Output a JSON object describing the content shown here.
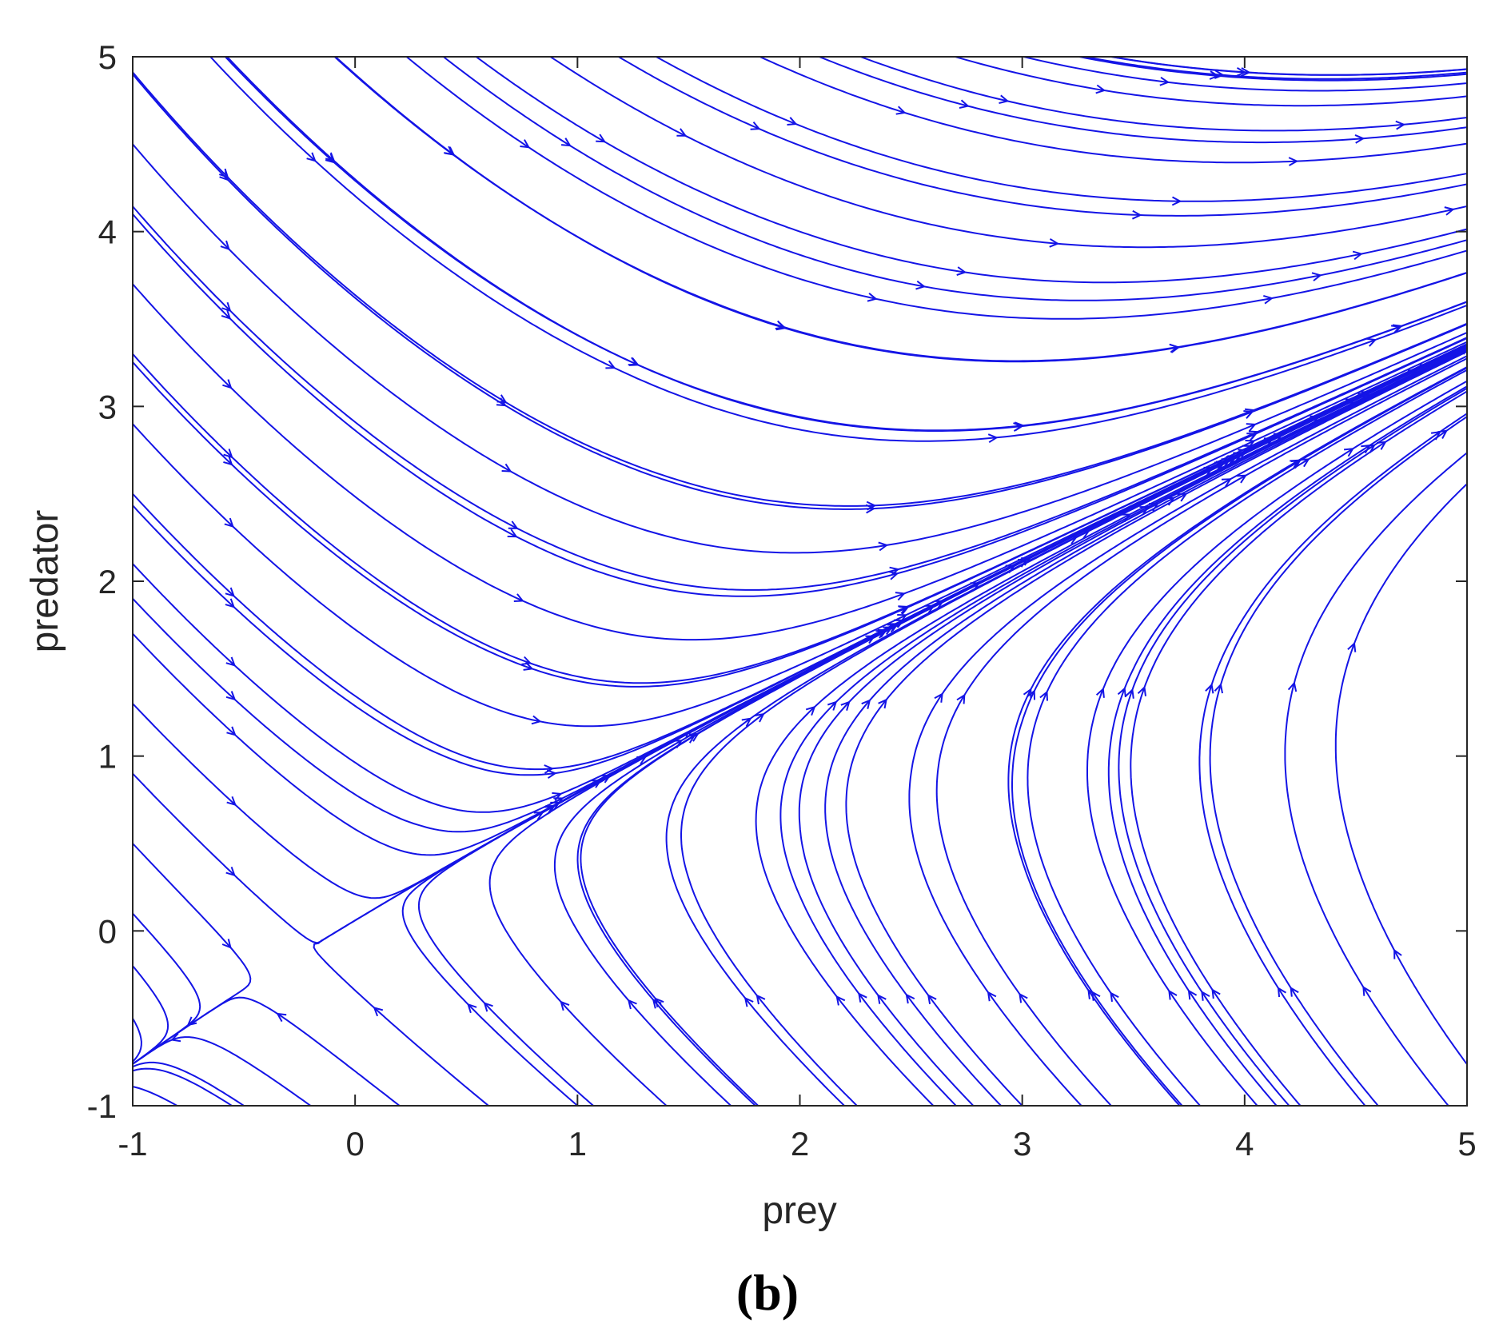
{
  "panel_label": "(b)",
  "chart_data": {
    "type": "streamplot",
    "title": "",
    "xlabel": "prey",
    "ylabel": "predator",
    "xlim": [
      -1,
      5
    ],
    "ylim": [
      -1,
      5
    ],
    "xticks": [
      -1,
      0,
      1,
      2,
      3,
      4,
      5
    ],
    "yticks": [
      -1,
      0,
      1,
      2,
      3,
      4,
      5
    ],
    "xtick_labels": [
      "-1",
      "0",
      "1",
      "2",
      "3",
      "4",
      "5"
    ],
    "ytick_labels": [
      "-1",
      "0",
      "1",
      "2",
      "3",
      "4",
      "5"
    ],
    "grid": false,
    "legend": "none",
    "line_color": "#1414e6",
    "axis_color": "#262626",
    "seeds": [
      [
        -1,
        4.9
      ],
      [
        -1,
        4.5
      ],
      [
        -1,
        4.1
      ],
      [
        -1,
        3.7
      ],
      [
        -1,
        3.3
      ],
      [
        -1,
        2.9
      ],
      [
        -1,
        2.5
      ],
      [
        -1,
        2.1
      ],
      [
        -1,
        1.7
      ],
      [
        -1,
        1.3
      ],
      [
        -1,
        0.9
      ],
      [
        -1,
        0.5
      ],
      [
        -1,
        0.1
      ],
      [
        -0.5,
        4.9
      ],
      [
        0,
        4.9
      ],
      [
        0.5,
        4.9
      ],
      [
        1.0,
        4.9
      ],
      [
        1.5,
        4.9
      ],
      [
        2.0,
        4.9
      ],
      [
        2.5,
        4.9
      ],
      [
        3.0,
        4.9
      ],
      [
        3.4,
        4.9
      ],
      [
        3.8,
        4.9
      ],
      [
        4.2,
        4.9
      ],
      [
        4.6,
        4.9
      ],
      [
        4.9,
        4.9
      ],
      [
        1.2,
        3.2
      ],
      [
        1.6,
        3.6
      ],
      [
        2.0,
        4.0
      ],
      [
        1.4,
        2.6
      ],
      [
        1.8,
        3.0
      ],
      [
        2.4,
        3.6
      ],
      [
        2.8,
        4.2
      ],
      [
        3.2,
        4.6
      ],
      [
        0.9,
        2.2
      ],
      [
        0.6,
        1.6
      ],
      [
        0.4,
        1.0
      ],
      [
        0.3,
        0.6
      ],
      [
        -1,
        -0.2
      ],
      [
        -1,
        -0.5
      ],
      [
        -1,
        -0.8
      ],
      [
        -0.8,
        -1
      ],
      [
        -0.5,
        -1
      ],
      [
        -0.2,
        -1
      ],
      [
        0.2,
        -1
      ],
      [
        0.6,
        -1
      ],
      [
        1.0,
        -1
      ],
      [
        1.4,
        -1
      ],
      [
        1.8,
        -1
      ],
      [
        2.2,
        -1
      ],
      [
        2.6,
        -1
      ],
      [
        3.0,
        -1
      ],
      [
        3.4,
        -1
      ],
      [
        3.8,
        -1
      ],
      [
        4.2,
        -1
      ],
      [
        4.6,
        -1
      ],
      [
        0.5,
        -0.3
      ],
      [
        1.0,
        0.0
      ],
      [
        1.5,
        0.3
      ],
      [
        2.0,
        0.6
      ],
      [
        2.5,
        0.9
      ],
      [
        3.0,
        1.2
      ],
      [
        3.5,
        1.5
      ],
      [
        4.0,
        1.8
      ],
      [
        4.5,
        2.1
      ],
      [
        1.5,
        -0.6
      ],
      [
        2.5,
        -0.4
      ],
      [
        3.5,
        0.0
      ],
      [
        4.5,
        0.4
      ],
      [
        4.0,
        -0.6
      ],
      [
        3.0,
        0.4
      ],
      [
        2.0,
        0.2
      ]
    ]
  }
}
